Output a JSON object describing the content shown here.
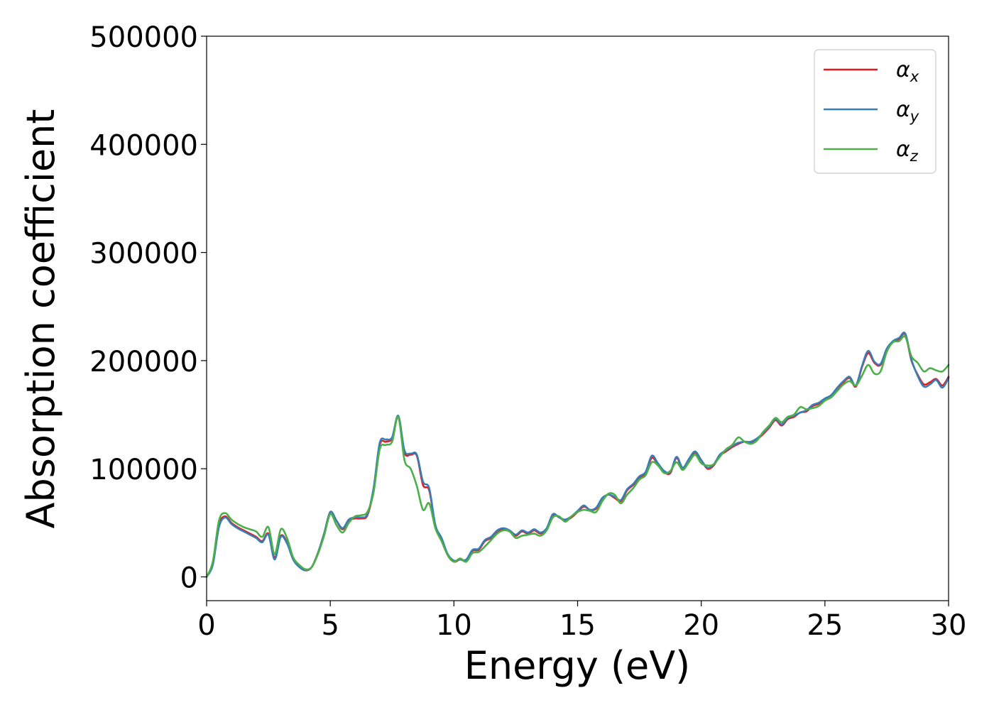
{
  "chart_data": {
    "type": "line",
    "title": "",
    "xlabel": "Energy (eV)",
    "ylabel": "Absorption coefficient",
    "xlim": [
      0,
      30
    ],
    "ylim": [
      -22000,
      500000
    ],
    "xticks": [
      0,
      5,
      10,
      15,
      20,
      25,
      30
    ],
    "xtick_labels": [
      "0",
      "5",
      "10",
      "15",
      "20",
      "25",
      "30"
    ],
    "yticks": [
      0,
      100000,
      200000,
      300000,
      400000,
      500000
    ],
    "ytick_labels": [
      "0",
      "100000",
      "200000",
      "300000",
      "400000",
      "500000"
    ],
    "grid": false,
    "legend_position": "top-right",
    "x": [
      0,
      0.25,
      0.5,
      0.75,
      1.0,
      1.25,
      1.5,
      1.75,
      2.0,
      2.25,
      2.5,
      2.75,
      3.0,
      3.25,
      3.5,
      3.75,
      4.0,
      4.25,
      4.5,
      4.75,
      5.0,
      5.25,
      5.5,
      5.75,
      6.0,
      6.25,
      6.5,
      6.75,
      7.0,
      7.25,
      7.5,
      7.75,
      8.0,
      8.25,
      8.5,
      8.75,
      9.0,
      9.25,
      9.5,
      9.75,
      10.0,
      10.25,
      10.5,
      10.75,
      11.0,
      11.25,
      11.5,
      11.75,
      12.0,
      12.25,
      12.5,
      12.75,
      13.0,
      13.25,
      13.5,
      13.75,
      14.0,
      14.25,
      14.5,
      14.75,
      15.0,
      15.25,
      15.5,
      15.75,
      16.0,
      16.25,
      16.5,
      16.75,
      17.0,
      17.25,
      17.5,
      17.75,
      18.0,
      18.25,
      18.5,
      18.75,
      19.0,
      19.25,
      19.5,
      19.75,
      20.0,
      20.25,
      20.5,
      20.75,
      21.0,
      21.25,
      21.5,
      21.75,
      22.0,
      22.25,
      22.5,
      22.75,
      23.0,
      23.25,
      23.5,
      23.75,
      24.0,
      24.25,
      24.5,
      24.75,
      25.0,
      25.25,
      25.5,
      25.75,
      26.0,
      26.25,
      26.5,
      26.75,
      27.0,
      27.25,
      27.5,
      27.75,
      28.0,
      28.25,
      28.5,
      28.75,
      29.0,
      29.25,
      29.5,
      29.75,
      30.0
    ],
    "series": [
      {
        "name": "αx",
        "label_base": "α",
        "label_sub": "x",
        "color": "#e41a1c",
        "values": [
          0,
          12000,
          48000,
          56000,
          50000,
          46000,
          43000,
          40000,
          37000,
          33000,
          40000,
          18000,
          38000,
          32000,
          17000,
          10000,
          6000,
          9000,
          22000,
          40000,
          60000,
          52000,
          44000,
          52000,
          54000,
          54000,
          57000,
          80000,
          122000,
          125000,
          128000,
          148000,
          115000,
          113000,
          112000,
          85000,
          80000,
          47000,
          35000,
          20000,
          14000,
          16000,
          15000,
          24000,
          25000,
          33000,
          36000,
          42000,
          44000,
          42000,
          38000,
          42000,
          40000,
          43000,
          40000,
          44000,
          57000,
          55000,
          52000,
          55000,
          60000,
          65000,
          62000,
          63000,
          72000,
          76000,
          73000,
          70000,
          80000,
          85000,
          92000,
          96000,
          110000,
          104000,
          97000,
          96000,
          110000,
          100000,
          108000,
          115000,
          108000,
          100000,
          103000,
          112000,
          116000,
          120000,
          123000,
          125000,
          124000,
          127000,
          132000,
          138000,
          145000,
          140000,
          146000,
          148000,
          152000,
          153000,
          158000,
          160000,
          164000,
          167000,
          174000,
          180000,
          184000,
          176000,
          194000,
          207000,
          198000,
          196000,
          210000,
          217000,
          220000,
          224000,
          200000,
          187000,
          178000,
          180000,
          183000,
          177000,
          185000
        ]
      },
      {
        "name": "αy",
        "label_base": "α",
        "label_sub": "y",
        "color": "#377eb8",
        "values": [
          0,
          11000,
          46000,
          55000,
          49000,
          45000,
          42000,
          39000,
          36000,
          32000,
          39000,
          16000,
          37000,
          31000,
          16000,
          9000,
          6000,
          9000,
          22000,
          40000,
          60000,
          52000,
          45000,
          53000,
          55000,
          55000,
          58000,
          82000,
          124000,
          127000,
          129000,
          149000,
          117000,
          114000,
          113000,
          88000,
          82000,
          48000,
          36000,
          21000,
          15000,
          16000,
          16000,
          25000,
          26000,
          34000,
          37000,
          43000,
          45000,
          43000,
          39000,
          43000,
          41000,
          44000,
          41000,
          45000,
          58000,
          55000,
          53000,
          56000,
          61000,
          66000,
          62000,
          64000,
          73000,
          76000,
          74000,
          71000,
          81000,
          86000,
          93000,
          97000,
          112000,
          105000,
          98000,
          97000,
          111000,
          101000,
          109000,
          116000,
          108000,
          101000,
          104000,
          113000,
          117000,
          121000,
          124000,
          125000,
          125000,
          128000,
          133000,
          139000,
          146000,
          141000,
          147000,
          149000,
          152000,
          154000,
          159000,
          161000,
          165000,
          168000,
          175000,
          181000,
          185000,
          177000,
          195000,
          209000,
          199000,
          197000,
          211000,
          218000,
          221000,
          225000,
          201000,
          186000,
          176000,
          178000,
          182000,
          175000,
          184000
        ]
      },
      {
        "name": "αz",
        "label_base": "α",
        "label_sub": "z",
        "color": "#4daf4a",
        "values": [
          0,
          14000,
          52000,
          59000,
          53000,
          49000,
          46000,
          44000,
          42000,
          37000,
          46000,
          21000,
          44000,
          36000,
          18000,
          11000,
          7000,
          9000,
          21000,
          38000,
          58000,
          48000,
          41000,
          50000,
          56000,
          57000,
          60000,
          78000,
          118000,
          122000,
          125000,
          148000,
          108000,
          100000,
          84000,
          62000,
          68000,
          45000,
          33000,
          20000,
          14000,
          17000,
          14000,
          22000,
          23000,
          28000,
          34000,
          40000,
          43000,
          42000,
          36000,
          38000,
          39000,
          40000,
          38000,
          43000,
          55000,
          56000,
          51000,
          56000,
          60000,
          62000,
          61000,
          60000,
          70000,
          77000,
          76000,
          68000,
          76000,
          82000,
          90000,
          94000,
          106000,
          103000,
          96000,
          98000,
          106000,
          99000,
          106000,
          113000,
          105000,
          103000,
          104000,
          111000,
          118000,
          122000,
          129000,
          125000,
          123000,
          126000,
          134000,
          140000,
          147000,
          143000,
          148000,
          150000,
          157000,
          155000,
          156000,
          158000,
          163000,
          166000,
          172000,
          178000,
          181000,
          177000,
          186000,
          196000,
          188000,
          190000,
          208000,
          217000,
          218000,
          222000,
          204000,
          198000,
          190000,
          193000,
          191000,
          190000,
          196000
        ]
      }
    ]
  }
}
